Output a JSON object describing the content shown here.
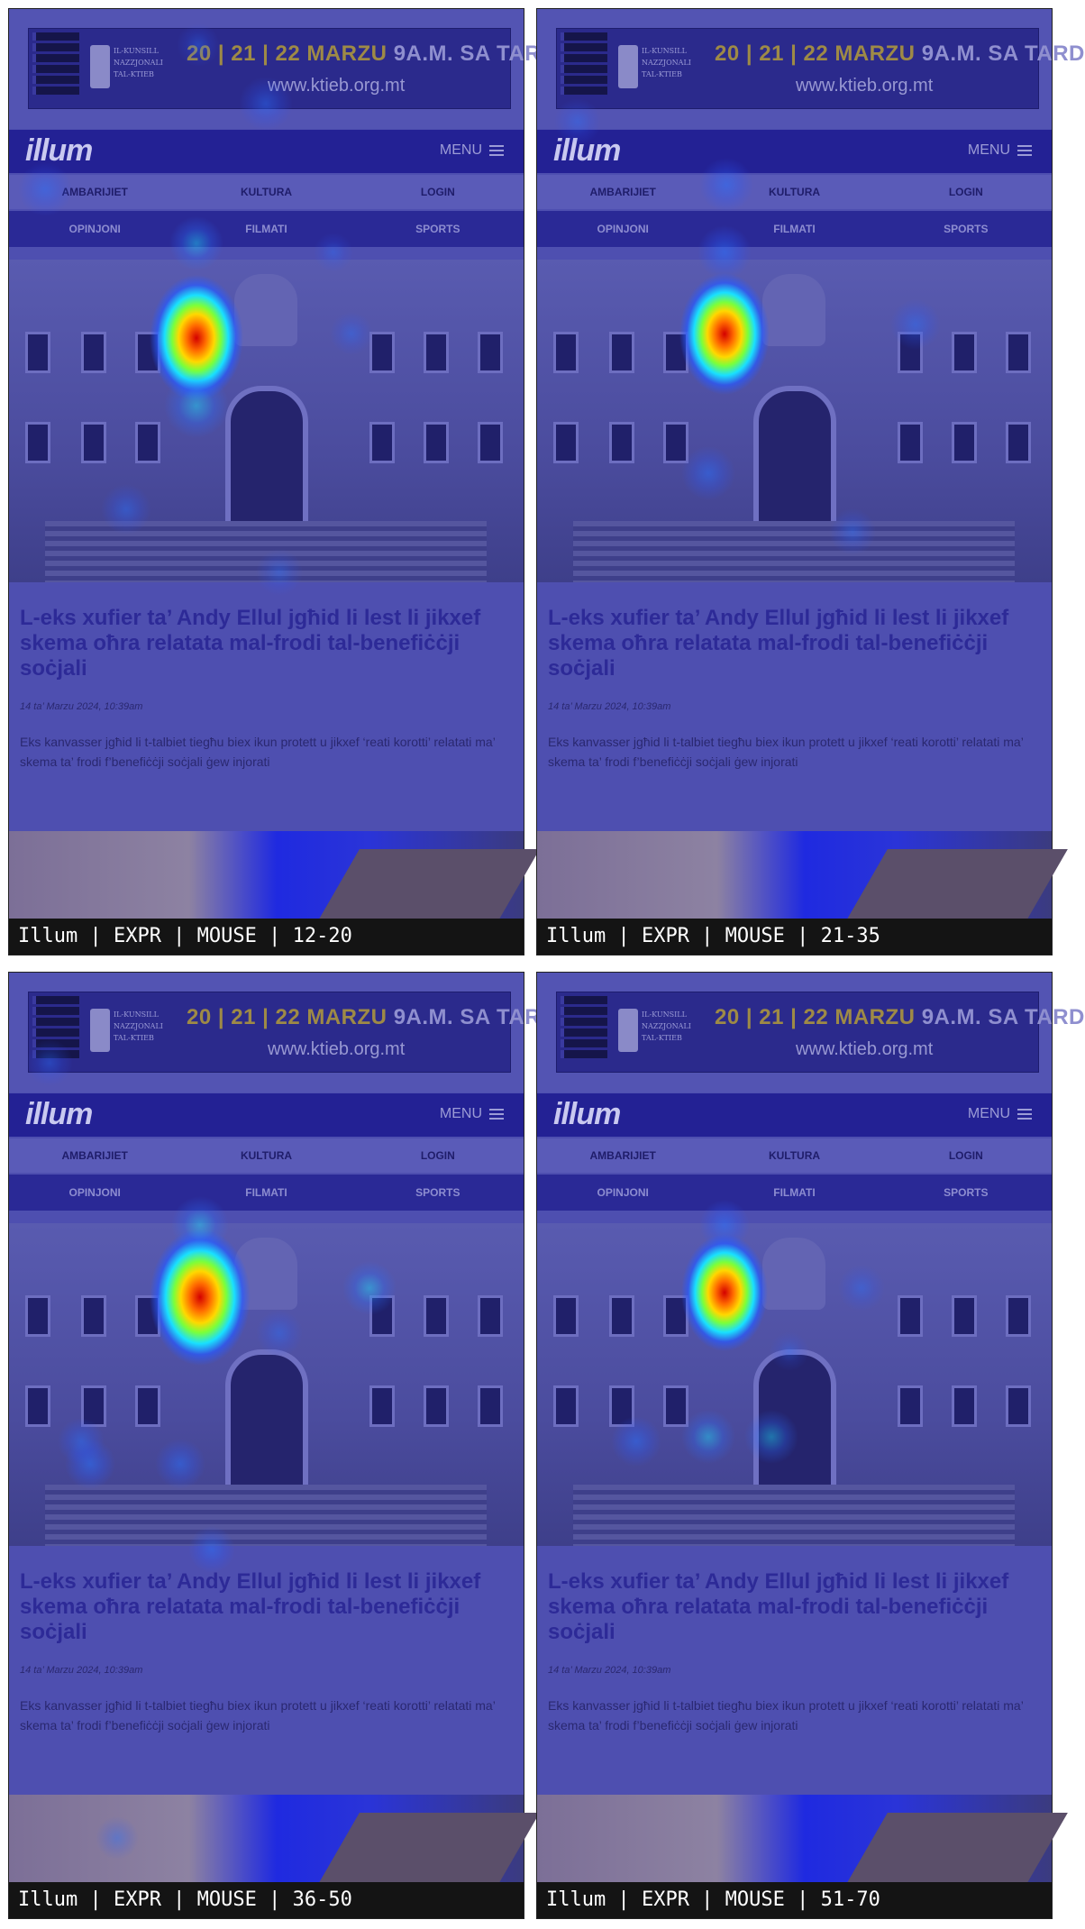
{
  "banner": {
    "council": "IL-KUNSILL NAZZJONALI TAL-KTIEB",
    "dates": "20 | 21 | 22 MARZU",
    "time": "9A.M. SA TARD",
    "site": "www.ktieb.org.mt"
  },
  "header": {
    "logo": "illum",
    "menu_label": "MENU"
  },
  "nav": {
    "row1": [
      "AMBARIJIET",
      "KULTURA",
      "LOGIN"
    ],
    "row2": [
      "OPINJONI",
      "FILMATI",
      "SPORTS"
    ]
  },
  "article": {
    "headline": "L-eks xufier ta’ Andy Ellul jgħid li lest li jikxef skema oħra relatata mal-frodi tal-benefiċċji soċjali",
    "date": "14 ta’ Marzu 2024, 10:39am",
    "excerpt": "Eks kanvasser jgħid li t-talbiet tiegħu biex ikun protett u jikxef ‘reati korotti’ relatati ma’ skema ta’ frodi f’benefiċċji soċjali ġew injorati"
  },
  "panels": [
    {
      "caption": "Illum | EXPR | MOUSE | 12-20"
    },
    {
      "caption": "Illum | EXPR | MOUSE | 21-35"
    },
    {
      "caption": "Illum | EXPR | MOUSE | 36-50"
    },
    {
      "caption": "Illum | EXPR | MOUSE | 51-70"
    }
  ],
  "colors": {
    "overlay": "#4e4fb0",
    "header_bg": "#232194",
    "heat_hot": "#d40000",
    "heat_warm": "#ffd800",
    "heat_cool": "#19e0ff"
  }
}
